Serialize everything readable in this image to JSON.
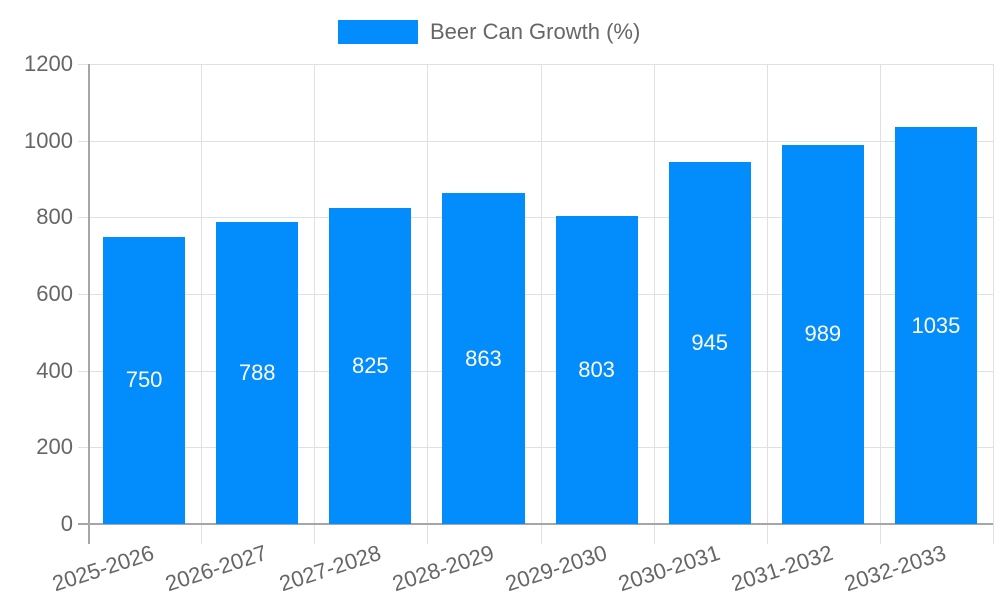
{
  "legend": {
    "label": "Beer Can Growth (%)",
    "color": "#038cfc"
  },
  "chart_data": {
    "type": "bar",
    "title": "",
    "xlabel": "",
    "ylabel": "",
    "categories": [
      "2025-2026",
      "2026-2027",
      "2027-2028",
      "2028-2029",
      "2029-2030",
      "2030-2031",
      "2031-2032",
      "2032-2033"
    ],
    "series": [
      {
        "name": "Beer Can Growth (%)",
        "values": [
          750,
          788,
          825,
          863,
          803,
          945,
          989,
          1035
        ],
        "color": "#038cfc"
      }
    ],
    "ylim": [
      0,
      1200
    ],
    "yticks": [
      0,
      200,
      400,
      600,
      800,
      1000,
      1200
    ],
    "grid": true,
    "legend_position": "top",
    "data_labels": true
  }
}
